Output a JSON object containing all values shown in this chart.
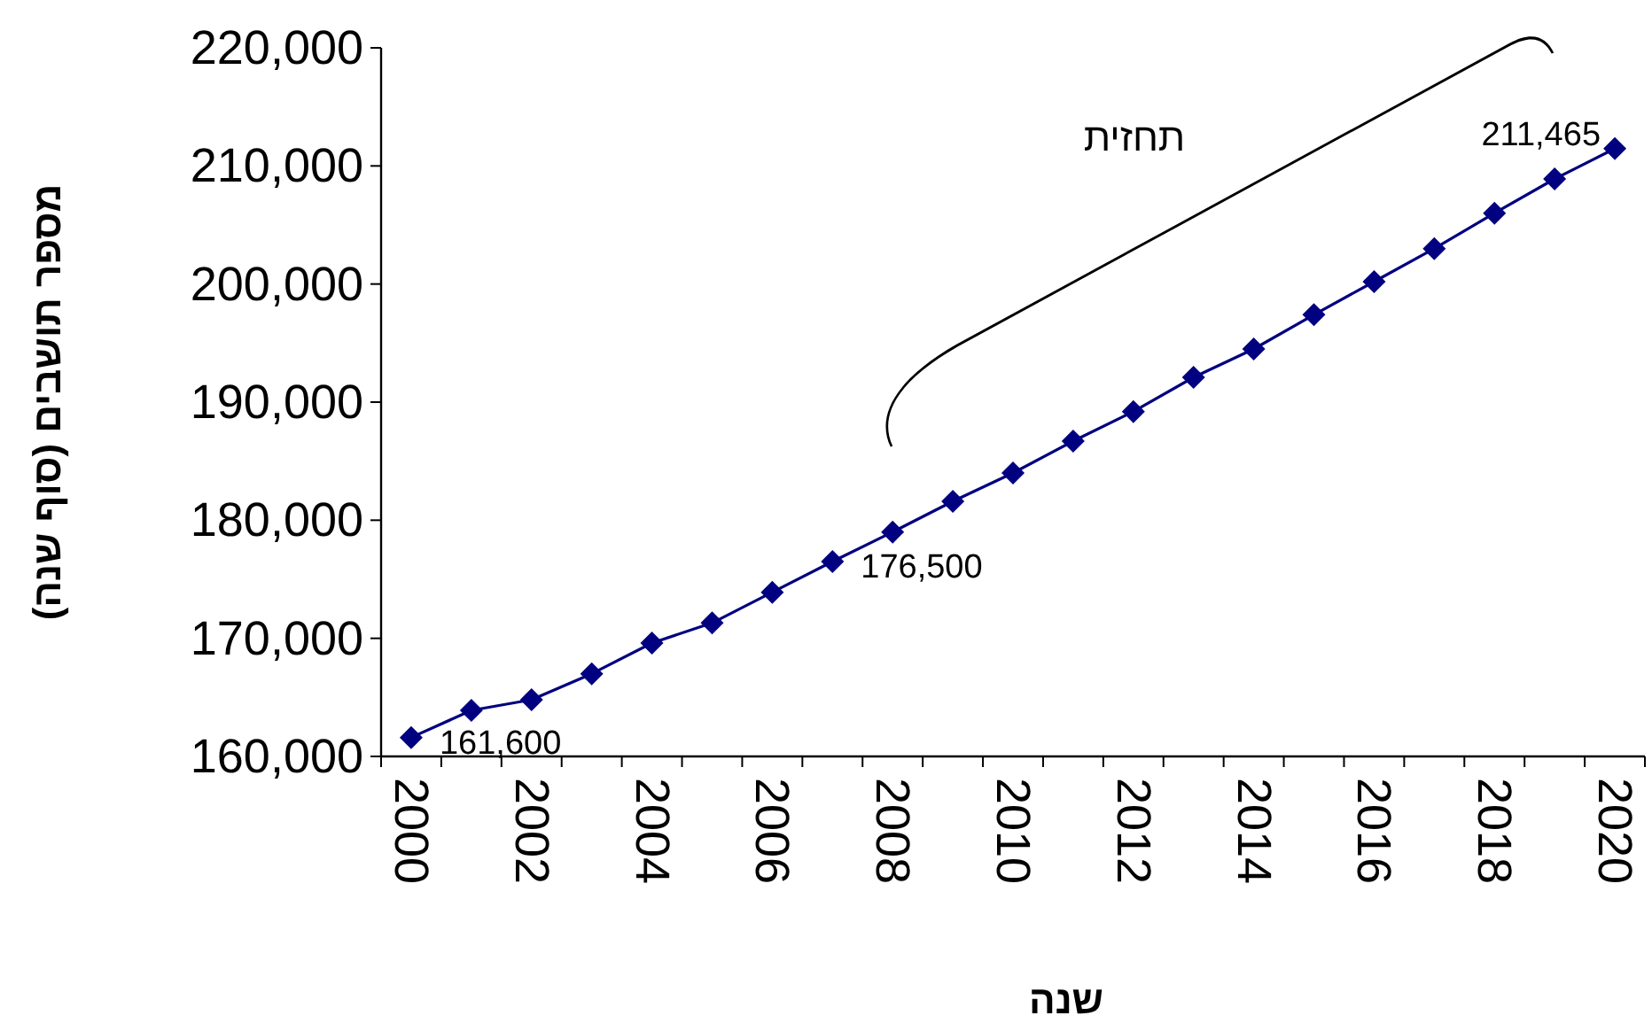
{
  "chart_data": {
    "type": "line",
    "xlabel": "שנה",
    "ylabel": "מספר תושבים (סוף שנה)",
    "categories": [
      "2000",
      null,
      "2002",
      null,
      "2004",
      null,
      "2006",
      null,
      "2008",
      null,
      "2010",
      null,
      "2012",
      null,
      "2014",
      null,
      "2016",
      null,
      "2018",
      null,
      "2020"
    ],
    "series": [
      {
        "color": "#000080",
        "values": [
          161600,
          163900,
          164800,
          167000,
          169600,
          171300,
          173900,
          176500,
          179000,
          181600,
          184000,
          186700,
          189200,
          192100,
          194500,
          197400,
          200200,
          203000,
          206000,
          208900,
          211465
        ],
        "value_labels": [
          "161,600",
          null,
          null,
          null,
          null,
          null,
          null,
          "176,500",
          null,
          null,
          null,
          null,
          null,
          null,
          null,
          null,
          null,
          null,
          null,
          null,
          "211,465"
        ]
      }
    ],
    "ylim": [
      160000,
      220000
    ],
    "yticks": [
      {
        "value": 160000,
        "label": "160,000"
      },
      {
        "value": 170000,
        "label": "170,000"
      },
      {
        "value": 180000,
        "label": "180,000"
      },
      {
        "value": 190000,
        "label": "190,000"
      },
      {
        "value": 200000,
        "label": "200,000"
      },
      {
        "value": 210000,
        "label": "210,000"
      },
      {
        "value": 220000,
        "label": "220,000"
      }
    ],
    "annotations": [
      "תחזית"
    ],
    "marker": "diamond",
    "line_style": "solid"
  }
}
